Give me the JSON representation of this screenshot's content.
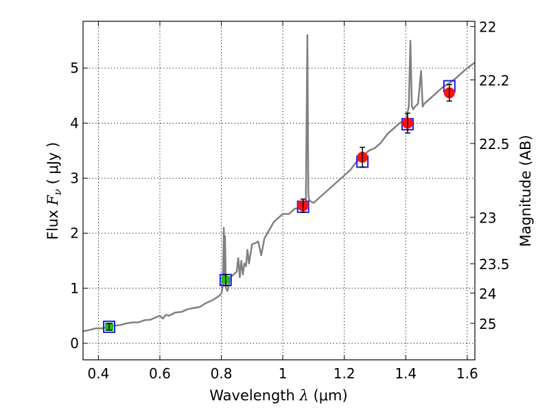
{
  "chart_data": {
    "type": "line",
    "xlabel": {
      "prefix": "Wavelength  ",
      "symbol": "λ",
      "unit": " (μm)"
    },
    "ylabel": {
      "prefix": "Flux  ",
      "symbol": "F",
      "subscript": "ν",
      "unit": "  ( μJy )"
    },
    "ylabel_right": "Magnitude (AB)",
    "xlim": [
      0.35,
      1.625
    ],
    "ylim": [
      -0.3,
      5.85
    ],
    "grid": true,
    "x_ticks": [
      0.4,
      0.6,
      0.8,
      1.0,
      1.2,
      1.4,
      1.6
    ],
    "x_tick_labels": [
      "0.4",
      "0.6",
      "0.8",
      "1",
      "1.2",
      "1.4",
      "1.6"
    ],
    "y_ticks": [
      0,
      1,
      2,
      3,
      4,
      5
    ],
    "y_tick_labels": [
      "0",
      "1",
      "2",
      "3",
      "4",
      "5"
    ],
    "right_ticks": [
      {
        "label": "22",
        "mag": 22.0
      },
      {
        "label": "22.2",
        "mag": 22.2
      },
      {
        "label": "22.5",
        "mag": 22.5
      },
      {
        "label": "23",
        "mag": 23.0
      },
      {
        "label": "23.5",
        "mag": 23.5
      },
      {
        "label": "24",
        "mag": 24.0
      },
      {
        "label": "25",
        "mag": 25.0
      }
    ],
    "spectrum": {
      "color": "#808080",
      "x": [
        0.35,
        0.37,
        0.39,
        0.41,
        0.43,
        0.45,
        0.47,
        0.49,
        0.51,
        0.53,
        0.55,
        0.57,
        0.59,
        0.6,
        0.61,
        0.62,
        0.63,
        0.65,
        0.67,
        0.69,
        0.71,
        0.73,
        0.75,
        0.77,
        0.79,
        0.8,
        0.805,
        0.808,
        0.81,
        0.812,
        0.815,
        0.82,
        0.83,
        0.84,
        0.85,
        0.855,
        0.86,
        0.865,
        0.87,
        0.875,
        0.88,
        0.885,
        0.89,
        0.9,
        0.91,
        0.92,
        0.93,
        0.94,
        0.95,
        0.96,
        0.97,
        0.98,
        0.99,
        1.0,
        1.02,
        1.04,
        1.06,
        1.07,
        1.075,
        1.08,
        1.083,
        1.086,
        1.09,
        1.1,
        1.12,
        1.14,
        1.16,
        1.18,
        1.2,
        1.22,
        1.24,
        1.26,
        1.28,
        1.3,
        1.32,
        1.34,
        1.36,
        1.38,
        1.4,
        1.41,
        1.415,
        1.42,
        1.425,
        1.43,
        1.44,
        1.45,
        1.455,
        1.46,
        1.47,
        1.48,
        1.5,
        1.52,
        1.54,
        1.56,
        1.58,
        1.6,
        1.625
      ],
      "y": [
        0.22,
        0.24,
        0.27,
        0.27,
        0.3,
        0.32,
        0.33,
        0.36,
        0.38,
        0.38,
        0.42,
        0.43,
        0.48,
        0.5,
        0.45,
        0.52,
        0.5,
        0.56,
        0.57,
        0.62,
        0.64,
        0.66,
        0.73,
        0.78,
        0.85,
        0.9,
        1.05,
        2.1,
        1.1,
        1.95,
        1.0,
        0.95,
        1.2,
        1.25,
        1.3,
        1.55,
        1.2,
        1.5,
        1.25,
        1.45,
        1.4,
        1.7,
        1.45,
        1.8,
        1.82,
        1.85,
        1.6,
        1.9,
        2.0,
        2.1,
        2.2,
        2.25,
        2.3,
        2.35,
        2.35,
        2.45,
        2.45,
        2.5,
        2.55,
        5.6,
        2.7,
        2.6,
        2.58,
        2.55,
        2.65,
        2.75,
        2.85,
        2.95,
        3.05,
        3.15,
        3.3,
        3.4,
        3.5,
        3.55,
        3.65,
        3.8,
        3.9,
        4.0,
        4.05,
        4.3,
        5.5,
        4.3,
        4.25,
        4.3,
        4.35,
        4.95,
        4.3,
        4.35,
        4.4,
        4.45,
        4.55,
        4.65,
        4.72,
        4.8,
        4.9,
        5.0,
        5.1
      ]
    },
    "photometry_model": {
      "marker": "open-square",
      "color": "#1a1aee",
      "x": [
        0.435,
        0.814,
        1.066,
        1.259,
        1.406,
        1.542
      ],
      "y": [
        0.3,
        1.15,
        2.48,
        3.3,
        3.98,
        4.67
      ]
    },
    "photometry_optical": {
      "marker": "filled-square",
      "color": "#22bb22",
      "x": [
        0.435,
        0.814
      ],
      "y": [
        0.3,
        1.15
      ],
      "err": [
        0.06,
        0.1
      ]
    },
    "photometry_nir": {
      "marker": "circle",
      "color": "#ff1111",
      "x": [
        1.066,
        1.259,
        1.406,
        1.542
      ],
      "y": [
        2.5,
        3.38,
        4.0,
        4.55
      ],
      "err": [
        0.12,
        0.18,
        0.18,
        0.15
      ]
    }
  }
}
